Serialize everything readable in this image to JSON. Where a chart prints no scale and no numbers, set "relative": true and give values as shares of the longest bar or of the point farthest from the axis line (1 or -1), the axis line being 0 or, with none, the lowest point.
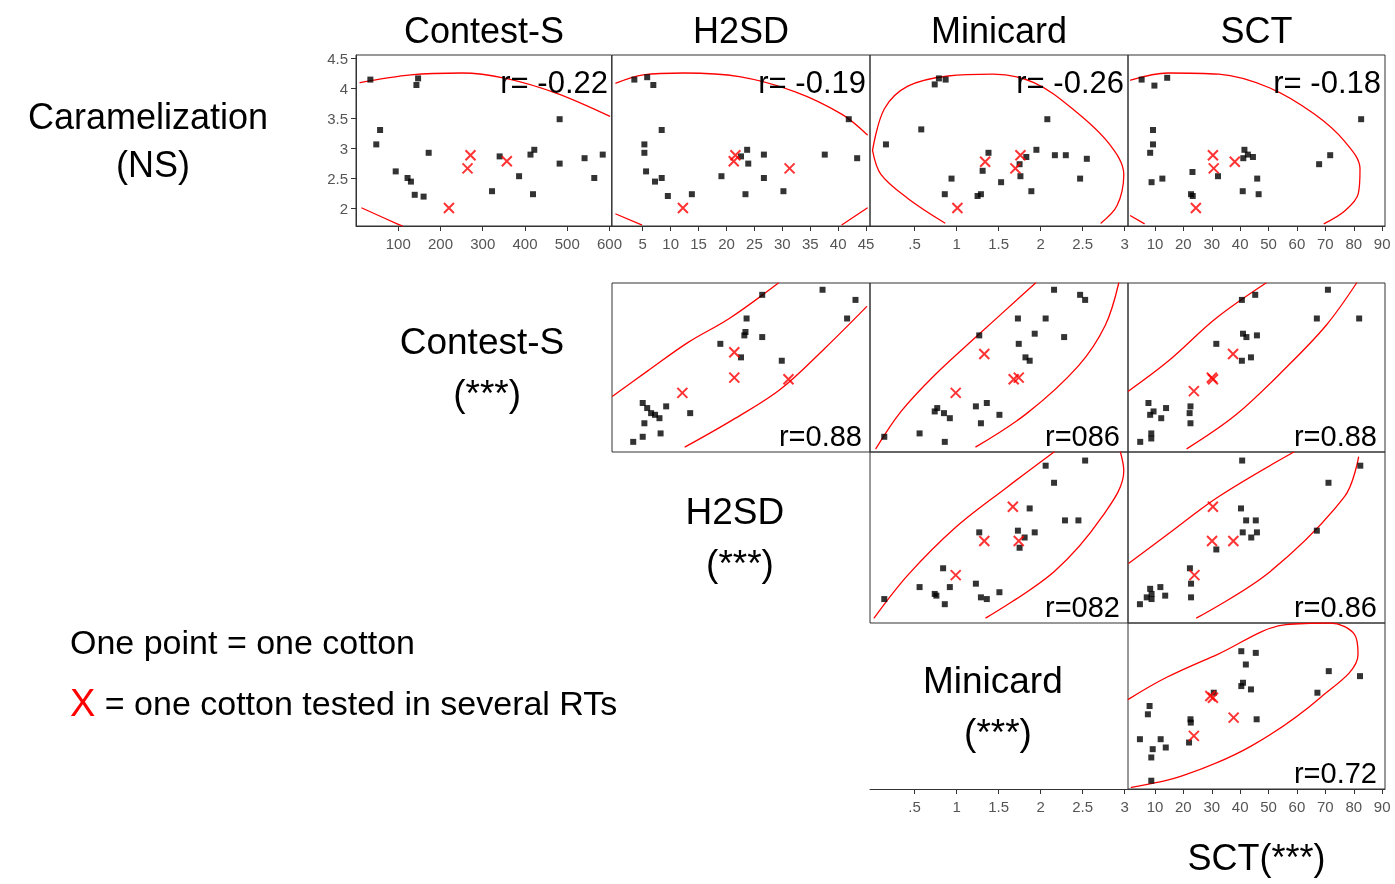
{
  "chart_data": [
    {
      "type": "scatter",
      "title": "Contest-S",
      "ylabel": "Caramelization (NS)",
      "annotations": [
        "r= -0.22",
        "One point = one cotton",
        "X = one cotton tested in several RTs"
      ],
      "xlim": [
        0,
        605
      ],
      "xticks": [
        100,
        200,
        300,
        400,
        500,
        600
      ],
      "ylim": [
        1.7,
        4.55
      ],
      "yticks": [
        2,
        2.5,
        3,
        3.5,
        4,
        4.5
      ],
      "series": [
        {
          "marker": "square",
          "color": "#000000",
          "x": [
            34,
            147,
            143,
            48,
            57,
            94,
            122,
            130,
            139,
            160,
            172,
            322,
            340,
            386,
            413,
            422,
            419,
            482,
            482,
            541,
            564,
            584
          ],
          "values": [
            4.14,
            4.16,
            4.05,
            3.06,
            3.3,
            2.61,
            2.5,
            2.44,
            2.22,
            2.19,
            2.92,
            2.28,
            2.86,
            2.53,
            2.89,
            2.97,
            2.23,
            3.48,
            2.74,
            2.83,
            2.5,
            2.89
          ]
        },
        {
          "marker": "cross",
          "color": "#ff0000",
          "x": [
            220,
            271,
            264,
            357
          ],
          "values": [
            2.0,
            2.88,
            2.66,
            2.78
          ]
        },
        {
          "type": "line",
          "marker": "none",
          "color": "#ff0000",
          "x": [
            9.5,
            130,
            251,
            354,
            475,
            600,
            null,
            14,
            96,
            110
          ],
          "values": [
            4.09,
            4.22,
            4.25,
            4.16,
            3.91,
            3.53,
            null,
            2.0,
            1.74,
            1.7
          ]
        }
      ]
    },
    {
      "type": "scatter",
      "title": "H2SD",
      "annotations": [
        "r= -0.19"
      ],
      "tick_labels": "x",
      "xlim": [
        -0.5,
        45.7
      ],
      "xticks": [
        5,
        10,
        15,
        20,
        25,
        30,
        35,
        40,
        45
      ],
      "ylim": [
        1.7,
        4.55
      ],
      "series": [
        {
          "marker": "square",
          "color": "#000000",
          "x": [
            3.5,
            5.8,
            6.9,
            8.4,
            5.3,
            5.3,
            5.6,
            8.4,
            7.2,
            9.5,
            13.8,
            19.1,
            22.6,
            23.7,
            23.9,
            23.4,
            26.7,
            26.7,
            30.2,
            37.6,
            41.9,
            43.4
          ],
          "values": [
            4.14,
            4.18,
            4.05,
            3.3,
            3.06,
            2.92,
            2.61,
            2.5,
            2.44,
            2.2,
            2.23,
            2.53,
            2.86,
            2.97,
            2.74,
            2.23,
            2.89,
            2.5,
            2.28,
            2.89,
            3.48,
            2.83
          ]
        },
        {
          "marker": "cross",
          "color": "#ff0000",
          "x": [
            12.2,
            21.6,
            21.3,
            31.3
          ],
          "values": [
            2.0,
            2.88,
            2.78,
            2.66
          ]
        },
        {
          "type": "line",
          "marker": "none",
          "color": "#ff0000",
          "x": [
            0.2,
            5.1,
            12.4,
            22.3,
            32.2,
            40.7,
            45.2,
            null,
            0.2,
            4.8,
            null,
            40.7,
            45.2
          ],
          "values": [
            4.08,
            4.22,
            4.25,
            4.19,
            3.94,
            3.56,
            3.22,
            null,
            1.9,
            1.72,
            null,
            1.72,
            2.0
          ]
        }
      ]
    },
    {
      "type": "scatter",
      "title": "Minicard",
      "annotations": [
        "r= -0.26"
      ],
      "tick_labels": "x",
      "xlim": [
        -0.03,
        3.04
      ],
      "xticks": [
        {
          "value": 0.5,
          "label": ".5"
        },
        1,
        1.5,
        2,
        2.5,
        3
      ],
      "ylim": [
        1.7,
        4.55
      ],
      "series": [
        {
          "marker": "square",
          "color": "#000000",
          "x": [
            0.74,
            0.79,
            0.87,
            0.16,
            0.58,
            1.38,
            1.31,
            0.94,
            0.86,
            1.25,
            1.29,
            1.53,
            1.75,
            1.76,
            1.83,
            1.95,
            1.89,
            2.08,
            2.17,
            2.3,
            2.47,
            2.55
          ],
          "values": [
            4.06,
            4.16,
            4.14,
            3.06,
            3.31,
            2.92,
            2.62,
            2.49,
            2.23,
            2.2,
            2.23,
            2.43,
            2.73,
            2.53,
            2.85,
            2.97,
            2.28,
            3.48,
            2.88,
            2.88,
            2.49,
            2.82
          ]
        },
        {
          "marker": "cross",
          "color": "#ff0000",
          "x": [
            1.01,
            1.34,
            1.7,
            1.76
          ],
          "values": [
            2.0,
            2.77,
            2.66,
            2.88
          ]
        },
        {
          "type": "line",
          "marker": "none",
          "color": "#ff0000",
          "x": [
            0.0,
            0.14,
            0.42,
            0.9,
            1.43,
            1.92,
            2.4,
            2.81,
            2.99,
            2.91,
            2.72,
            null,
            0.86,
            0.42,
            0.1,
            0.0
          ],
          "values": [
            2.96,
            3.65,
            4.03,
            4.2,
            4.23,
            4.09,
            3.63,
            3.08,
            2.56,
            2.04,
            1.75,
            null,
            1.75,
            2.16,
            2.56,
            2.96
          ]
        }
      ]
    },
    {
      "type": "scatter",
      "title": "SCT",
      "annotations": [
        "r= -0.18"
      ],
      "tick_labels": "x",
      "xlim": [
        0.5,
        91
      ],
      "xticks": [
        10,
        20,
        30,
        40,
        50,
        60,
        70,
        80,
        90
      ],
      "ylim": [
        1.7,
        4.55
      ],
      "series": [
        {
          "marker": "square",
          "color": "#000000",
          "x": [
            5.3,
            9.8,
            14.3,
            9.3,
            9.3,
            8.3,
            8.8,
            12.6,
            23.2,
            22.7,
            23.3,
            32.2,
            41.5,
            41.1,
            42.7,
            44.5,
            40.9,
            46,
            46.5,
            67.8,
            71.7,
            82.6
          ],
          "values": [
            4.14,
            4.04,
            4.17,
            3.3,
            3.06,
            2.92,
            2.43,
            2.49,
            2.6,
            2.23,
            2.2,
            2.53,
            2.97,
            2.83,
            2.89,
            2.85,
            2.28,
            2.49,
            2.23,
            2.73,
            2.88,
            3.48
          ]
        },
        {
          "marker": "cross",
          "color": "#ff0000",
          "x": [
            24.4,
            30.4,
            30.7,
            38.1
          ],
          "values": [
            2.0,
            2.88,
            2.66,
            2.77
          ]
        },
        {
          "type": "line",
          "marker": "none",
          "color": "#ff0000",
          "x": [
            1.4,
            14.6,
            32.5,
            50.5,
            66,
            76.8,
            82.2,
            81.6,
            76.8,
            69.6,
            null,
            1.4,
            6.2
          ],
          "values": [
            4.13,
            4.25,
            4.23,
            4.0,
            3.57,
            3.11,
            2.65,
            2.24,
            1.95,
            1.74,
            null,
            1.87,
            1.74
          ]
        }
      ]
    },
    {
      "type": "scatter",
      "ylabel": "Contest-S (***)",
      "annotations": [
        "r=0.88"
      ],
      "tick_labels": false,
      "relative": true,
      "xlim": [
        -0.5,
        45.7
      ],
      "series": [
        {
          "marker": "square",
          "color": "#000000",
          "x": [
            3.3,
            5.0,
            5.3,
            8.2,
            5.0,
            5.8,
            6.5,
            7.2,
            8.0,
            9.2,
            13.5,
            18.9,
            22.6,
            23.2,
            23.4,
            23.6,
            26.4,
            26.4,
            29.9,
            37.2,
            41.6,
            43.1
          ],
          "values": [
            0.06,
            0.09,
            0.17,
            0.11,
            0.29,
            0.26,
            0.23,
            0.22,
            0.2,
            0.27,
            0.23,
            0.64,
            0.56,
            0.69,
            0.71,
            0.79,
            0.93,
            0.68,
            0.54,
            0.96,
            0.79,
            0.9
          ]
        },
        {
          "marker": "cross",
          "color": "#ff0000",
          "x": [
            12.1,
            21.4,
            21.4,
            31.1
          ],
          "values": [
            0.35,
            0.59,
            0.44,
            0.43
          ]
        },
        {
          "type": "line",
          "marker": "none",
          "color": "#ff0000",
          "x": [
            -0.4,
            5.9,
            13.2,
            20.5,
            29.3,
            null,
            12.6,
            21.1,
            29.6,
            37.5,
            45.1
          ],
          "values": [
            0.33,
            0.48,
            0.65,
            0.79,
            1,
            null,
            0.03,
            0.19,
            0.37,
            0.61,
            0.86
          ]
        }
      ]
    },
    {
      "type": "scatter",
      "annotations": [
        "r=086"
      ],
      "tick_labels": false,
      "relative": true,
      "xlim": [
        -0.03,
        3.04
      ],
      "series": [
        {
          "marker": "square",
          "color": "#000000",
          "x": [
            0.14,
            0.56,
            0.86,
            0.74,
            0.77,
            0.85,
            0.92,
            1.23,
            1.36,
            1.29,
            1.51,
            1.27,
            1.74,
            1.82,
            1.87,
            1.73,
            1.93,
            2.06,
            2.16,
            2.28,
            2.47,
            2.53
          ],
          "values": [
            0.09,
            0.11,
            0.06,
            0.24,
            0.26,
            0.23,
            0.2,
            0.27,
            0.29,
            0.17,
            0.22,
            0.69,
            0.64,
            0.56,
            0.54,
            0.79,
            0.7,
            0.79,
            0.96,
            0.68,
            0.93,
            0.9
          ]
        },
        {
          "marker": "cross",
          "color": "#ff0000",
          "x": [
            0.99,
            1.33,
            1.68,
            1.74
          ],
          "values": [
            0.35,
            0.58,
            0.43,
            0.44
          ]
        },
        {
          "type": "line",
          "marker": "none",
          "color": "#ff0000",
          "x": [
            0.04,
            0.34,
            0.75,
            1.23,
            1.94,
            null,
            1.23,
            1.84,
            2.45,
            2.77,
            2.93
          ],
          "values": [
            0.02,
            0.24,
            0.46,
            0.68,
            1,
            null,
            0.03,
            0.23,
            0.51,
            0.75,
            1
          ]
        }
      ]
    },
    {
      "type": "scatter",
      "annotations": [
        "r=0.88"
      ],
      "tick_labels": false,
      "relative": true,
      "xlim": [
        0.5,
        91
      ],
      "series": [
        {
          "marker": "square",
          "color": "#000000",
          "x": [
            4.8,
            8.7,
            8.7,
            7.7,
            8.3,
            9.5,
            12.2,
            13.9,
            22.5,
            22.2,
            22.5,
            31.6,
            40.6,
            43.8,
            41,
            42.2,
            45.9,
            40.6,
            45.3,
            70.9,
            67,
            81.9
          ],
          "values": [
            0.06,
            0.11,
            0.08,
            0.29,
            0.22,
            0.24,
            0.2,
            0.26,
            0.27,
            0.23,
            0.17,
            0.64,
            0.54,
            0.56,
            0.7,
            0.68,
            0.69,
            0.9,
            0.93,
            0.96,
            0.79,
            0.79
          ]
        },
        {
          "marker": "cross",
          "color": "#ff0000",
          "x": [
            23.7,
            30,
            30.4,
            37.5
          ],
          "values": [
            0.36,
            0.44,
            0.43,
            0.58
          ]
        },
        {
          "type": "line",
          "marker": "none",
          "color": "#ff0000",
          "x": [
            0.6,
            14.8,
            31.4,
            49.1,
            null,
            21.3,
            38.5,
            56.2,
            70.3,
            81
          ],
          "values": [
            0.36,
            0.54,
            0.79,
            1,
            null,
            0.02,
            0.22,
            0.5,
            0.75,
            1
          ]
        }
      ]
    },
    {
      "type": "scatter",
      "ylabel": "H2SD (***)",
      "annotations": [
        "r=082"
      ],
      "tick_labels": "x",
      "relative": true,
      "xlim": [
        -0.03,
        3.04
      ],
      "xticks": [
        {
          "value": 0.5,
          "label": ".5"
        },
        1,
        1.5,
        2,
        2.5,
        3
      ],
      "series": [
        {
          "marker": "square",
          "color": "#000000",
          "x": [
            0.14,
            0.56,
            0.74,
            0.76,
            0.86,
            0.84,
            0.92,
            1.23,
            1.29,
            1.36,
            1.51,
            1.27,
            1.73,
            1.75,
            1.81,
            1.93,
            1.87,
            2.06,
            2.16,
            2.29,
            2.45,
            2.53
          ],
          "values": [
            0.14,
            0.21,
            0.17,
            0.16,
            0.11,
            0.32,
            0.21,
            0.23,
            0.15,
            0.14,
            0.18,
            0.53,
            0.54,
            0.44,
            0.5,
            0.53,
            0.67,
            0.92,
            0.82,
            0.6,
            0.6,
            0.95
          ]
        },
        {
          "marker": "cross",
          "color": "#ff0000",
          "x": [
            0.99,
            1.33,
            1.74,
            1.67
          ],
          "values": [
            0.28,
            0.48,
            0.48,
            0.68
          ]
        },
        {
          "type": "line",
          "marker": "none",
          "color": "#ff0000",
          "x": [
            0.02,
            0.42,
            0.99,
            1.59,
            2.16,
            null,
            2.95,
            2.99,
            2.73,
            2.16,
            1.35
          ],
          "values": [
            0.03,
            0.28,
            0.56,
            0.79,
            1,
            null,
            1,
            0.89,
            0.62,
            0.3,
            0.03
          ]
        }
      ]
    },
    {
      "type": "scatter",
      "annotations": [
        "r=0.86"
      ],
      "tick_labels": false,
      "relative": true,
      "xlim": [
        0.5,
        91
      ],
      "series": [
        {
          "marker": "square",
          "color": "#000000",
          "x": [
            4.7,
            7.1,
            8.3,
            8.8,
            11.9,
            13.6,
            8.8,
            22.3,
            22.7,
            22.7,
            31.6,
            40.7,
            40.3,
            42.1,
            45.5,
            40.9,
            43.9,
            45.9,
            67,
            71.1,
            82.3
          ],
          "values": [
            0.11,
            0.15,
            0.2,
            0.17,
            0.21,
            0.16,
            0.14,
            0.32,
            0.23,
            0.15,
            0.43,
            0.95,
            0.67,
            0.6,
            0.6,
            0.53,
            0.5,
            0.53,
            0.54,
            0.82,
            0.92
          ]
        },
        {
          "marker": "cross",
          "color": "#ff0000",
          "x": [
            23.9,
            30.1,
            37.6,
            30.4
          ],
          "values": [
            0.28,
            0.48,
            0.48,
            0.68
          ]
        },
        {
          "type": "line",
          "marker": "none",
          "color": "#ff0000",
          "x": [
            0.8,
            14.6,
            32.5,
            58.9,
            null,
            24.7,
            50.5,
            76.8,
            81.7
          ],
          "values": [
            0.35,
            0.52,
            0.74,
            1,
            null,
            0.03,
            0.3,
            0.74,
            0.97
          ]
        }
      ]
    },
    {
      "type": "scatter",
      "ylabel": "Minicard (***)",
      "xlabel": "SCT(***)",
      "annotations": [
        "r=0.72"
      ],
      "tick_labels": "x",
      "relative": true,
      "xlim": [
        0.5,
        91
      ],
      "xticks": [
        10,
        20,
        30,
        40,
        50,
        60,
        70,
        80,
        90
      ],
      "series": [
        {
          "marker": "square",
          "color": "#000000",
          "x": [
            8.7,
            8.7,
            9.2,
            4.7,
            12,
            13.8,
            7.5,
            8.1,
            22,
            22.5,
            22.6,
            30.7,
            40.4,
            45.5,
            42,
            40.4,
            41,
            43.8,
            45.8,
            67.2,
            71.2,
            82.2
          ],
          "values": [
            0.05,
            0.19,
            0.24,
            0.3,
            0.3,
            0.25,
            0.45,
            0.5,
            0.28,
            0.42,
            0.4,
            0.58,
            0.83,
            0.82,
            0.75,
            0.62,
            0.64,
            0.6,
            0.42,
            0.58,
            0.71,
            0.68
          ]
        },
        {
          "marker": "cross",
          "color": "#ff0000",
          "x": [
            23.7,
            29.5,
            30.4,
            37.7
          ],
          "values": [
            0.32,
            0.56,
            0.55,
            0.43
          ]
        },
        {
          "type": "line",
          "marker": "none",
          "color": "#ff0000",
          "x": [
            1.7,
            19.8,
            44,
            68.2,
            81.5,
            80.3,
            71.8,
            56.1,
            31.9,
            13.8,
            0.6
          ],
          "values": [
            0.01,
            0.08,
            0.26,
            0.55,
            0.81,
            0.93,
            1,
            0.99,
            0.81,
            0.67,
            0.54
          ]
        }
      ]
    }
  ]
}
